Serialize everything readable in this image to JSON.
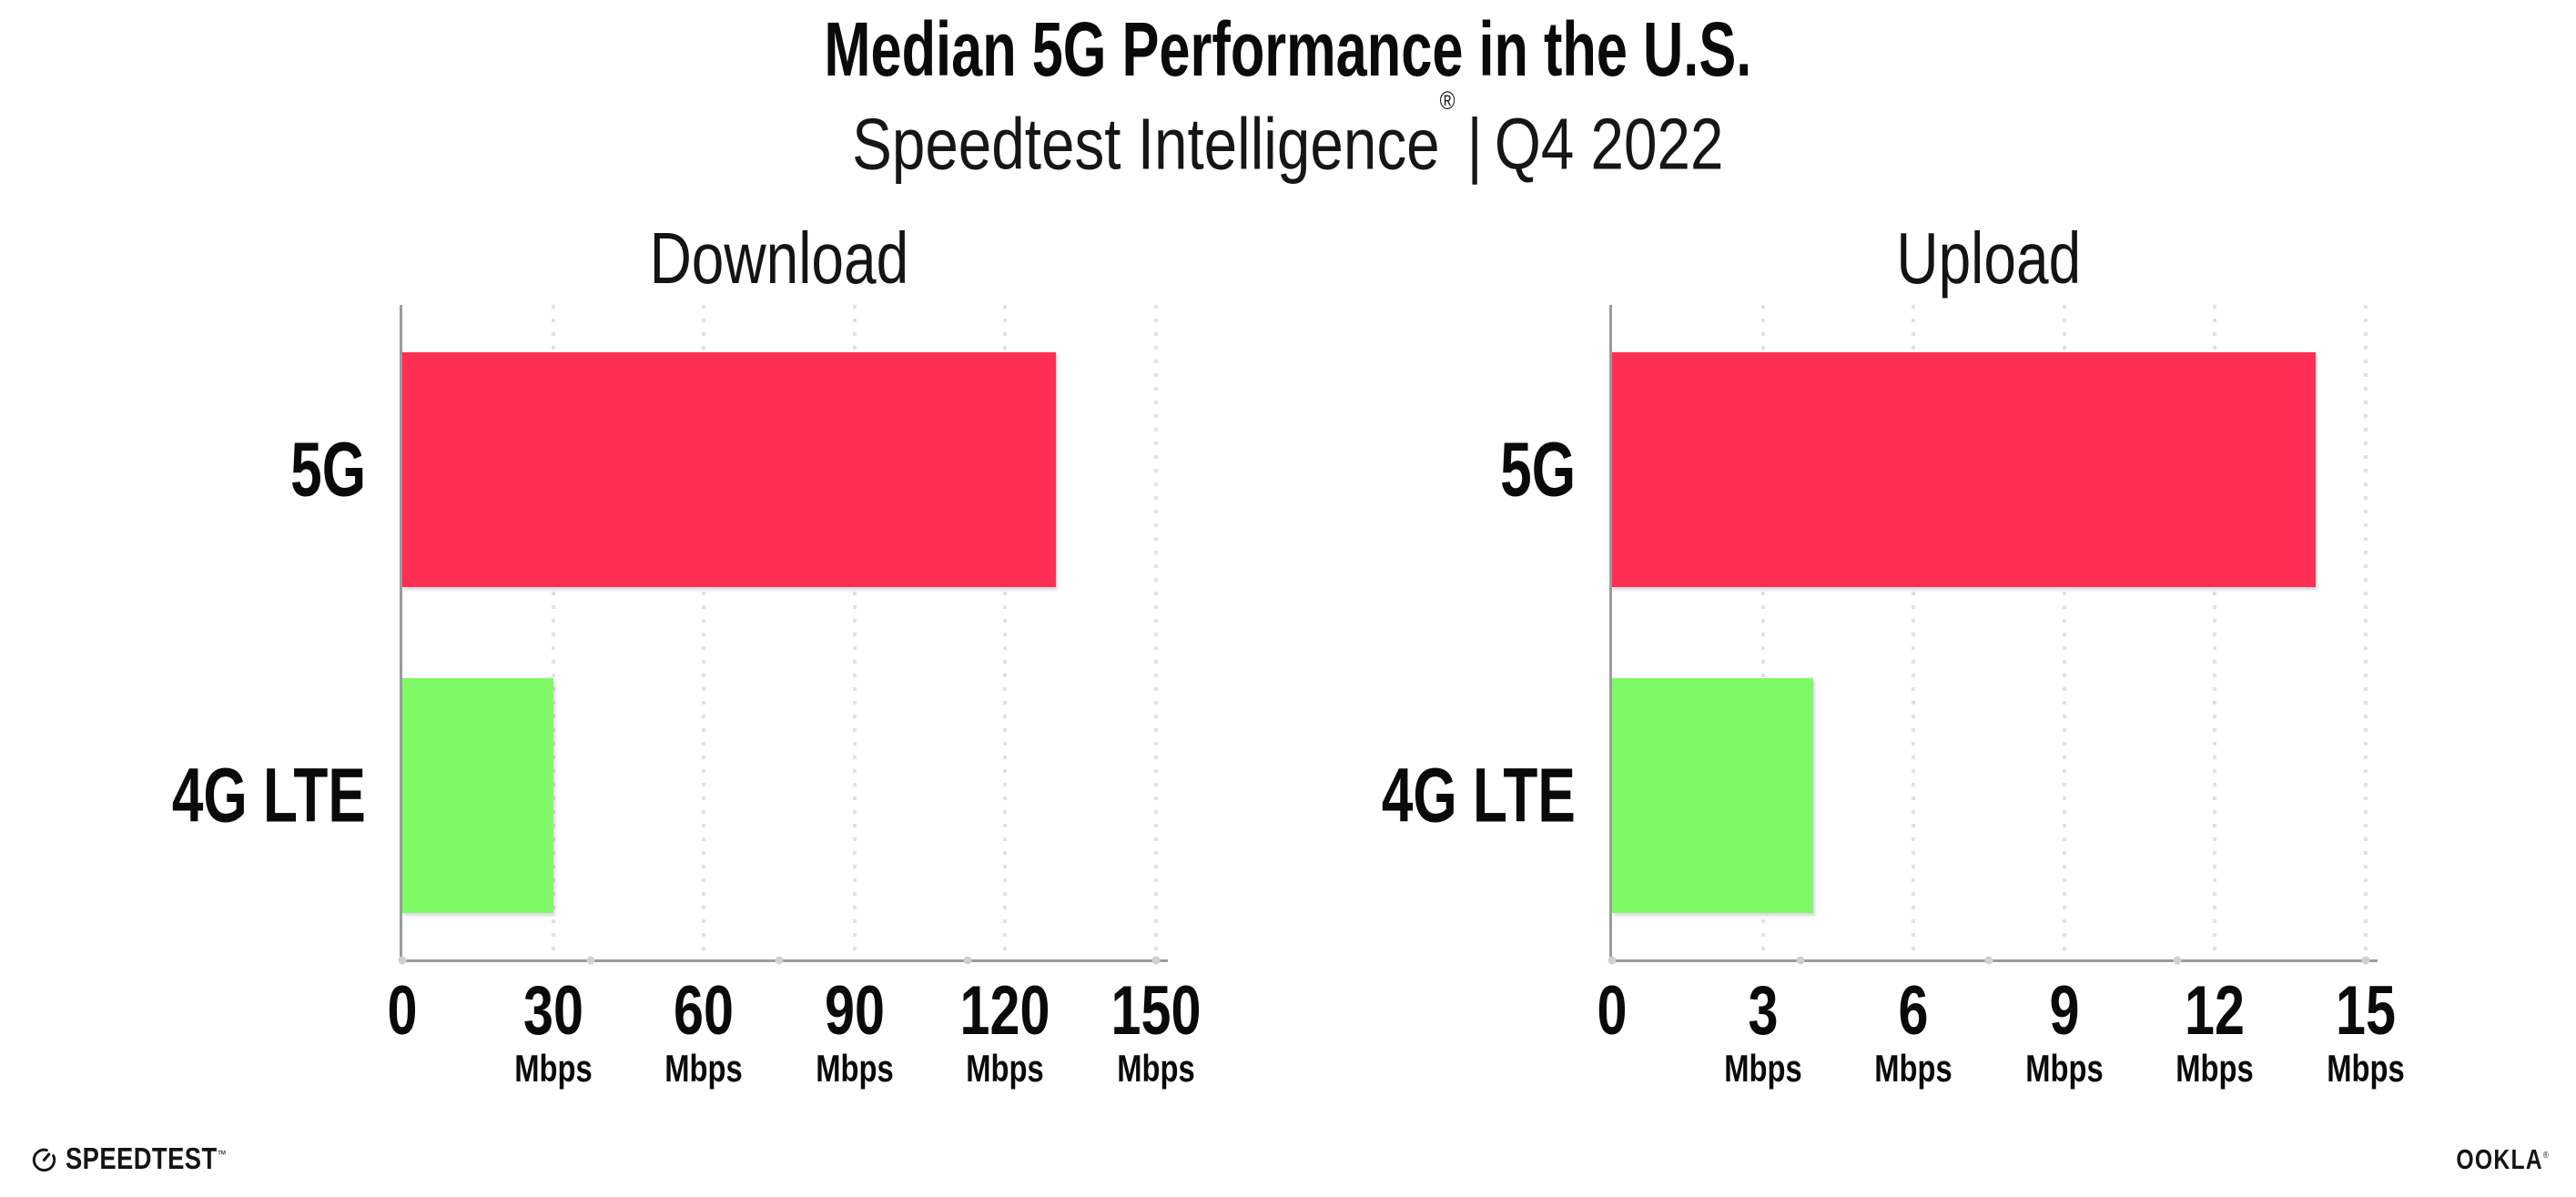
{
  "header": {
    "title": "Median 5G Performance in the U.S.",
    "subtitle": {
      "brand": "Speedtest Intelligence",
      "registered_mark": "®",
      "divider": "|",
      "period": "Q4 2022"
    }
  },
  "chart_data": [
    {
      "type": "bar",
      "orientation": "horizontal",
      "title": "Download",
      "categories": [
        "5G",
        "4G LTE"
      ],
      "values": [
        130,
        30
      ],
      "unit": "Mbps",
      "xlim": [
        0,
        150
      ],
      "xticks": [
        0,
        30,
        60,
        90,
        120,
        150
      ],
      "tick_unit": "Mbps",
      "bar_colors": [
        "#FF2E54",
        "#80F966"
      ],
      "grid": "vertical-dotted",
      "legend": "none"
    },
    {
      "type": "bar",
      "orientation": "horizontal",
      "title": "Upload",
      "categories": [
        "5G",
        "4G LTE"
      ],
      "values": [
        14,
        4
      ],
      "unit": "Mbps",
      "xlim": [
        0,
        15
      ],
      "xticks": [
        0,
        3,
        6,
        9,
        12,
        15
      ],
      "tick_unit": "Mbps",
      "bar_colors": [
        "#FF2E54",
        "#80F966"
      ],
      "grid": "vertical-dotted",
      "legend": "none"
    }
  ],
  "footer": {
    "speedtest": {
      "label": "SPEEDTEST",
      "mark": "™"
    },
    "ookla": {
      "label": "OOKLA",
      "mark": "®"
    }
  },
  "colors": {
    "bar_5g": "#FF2E54",
    "bar_4g_lte": "#80F966",
    "axis_line": "#9B9B9B",
    "gridline_dot": "#E1E1EB",
    "text": "#0D0D0D",
    "background": "#FFFFFF"
  }
}
